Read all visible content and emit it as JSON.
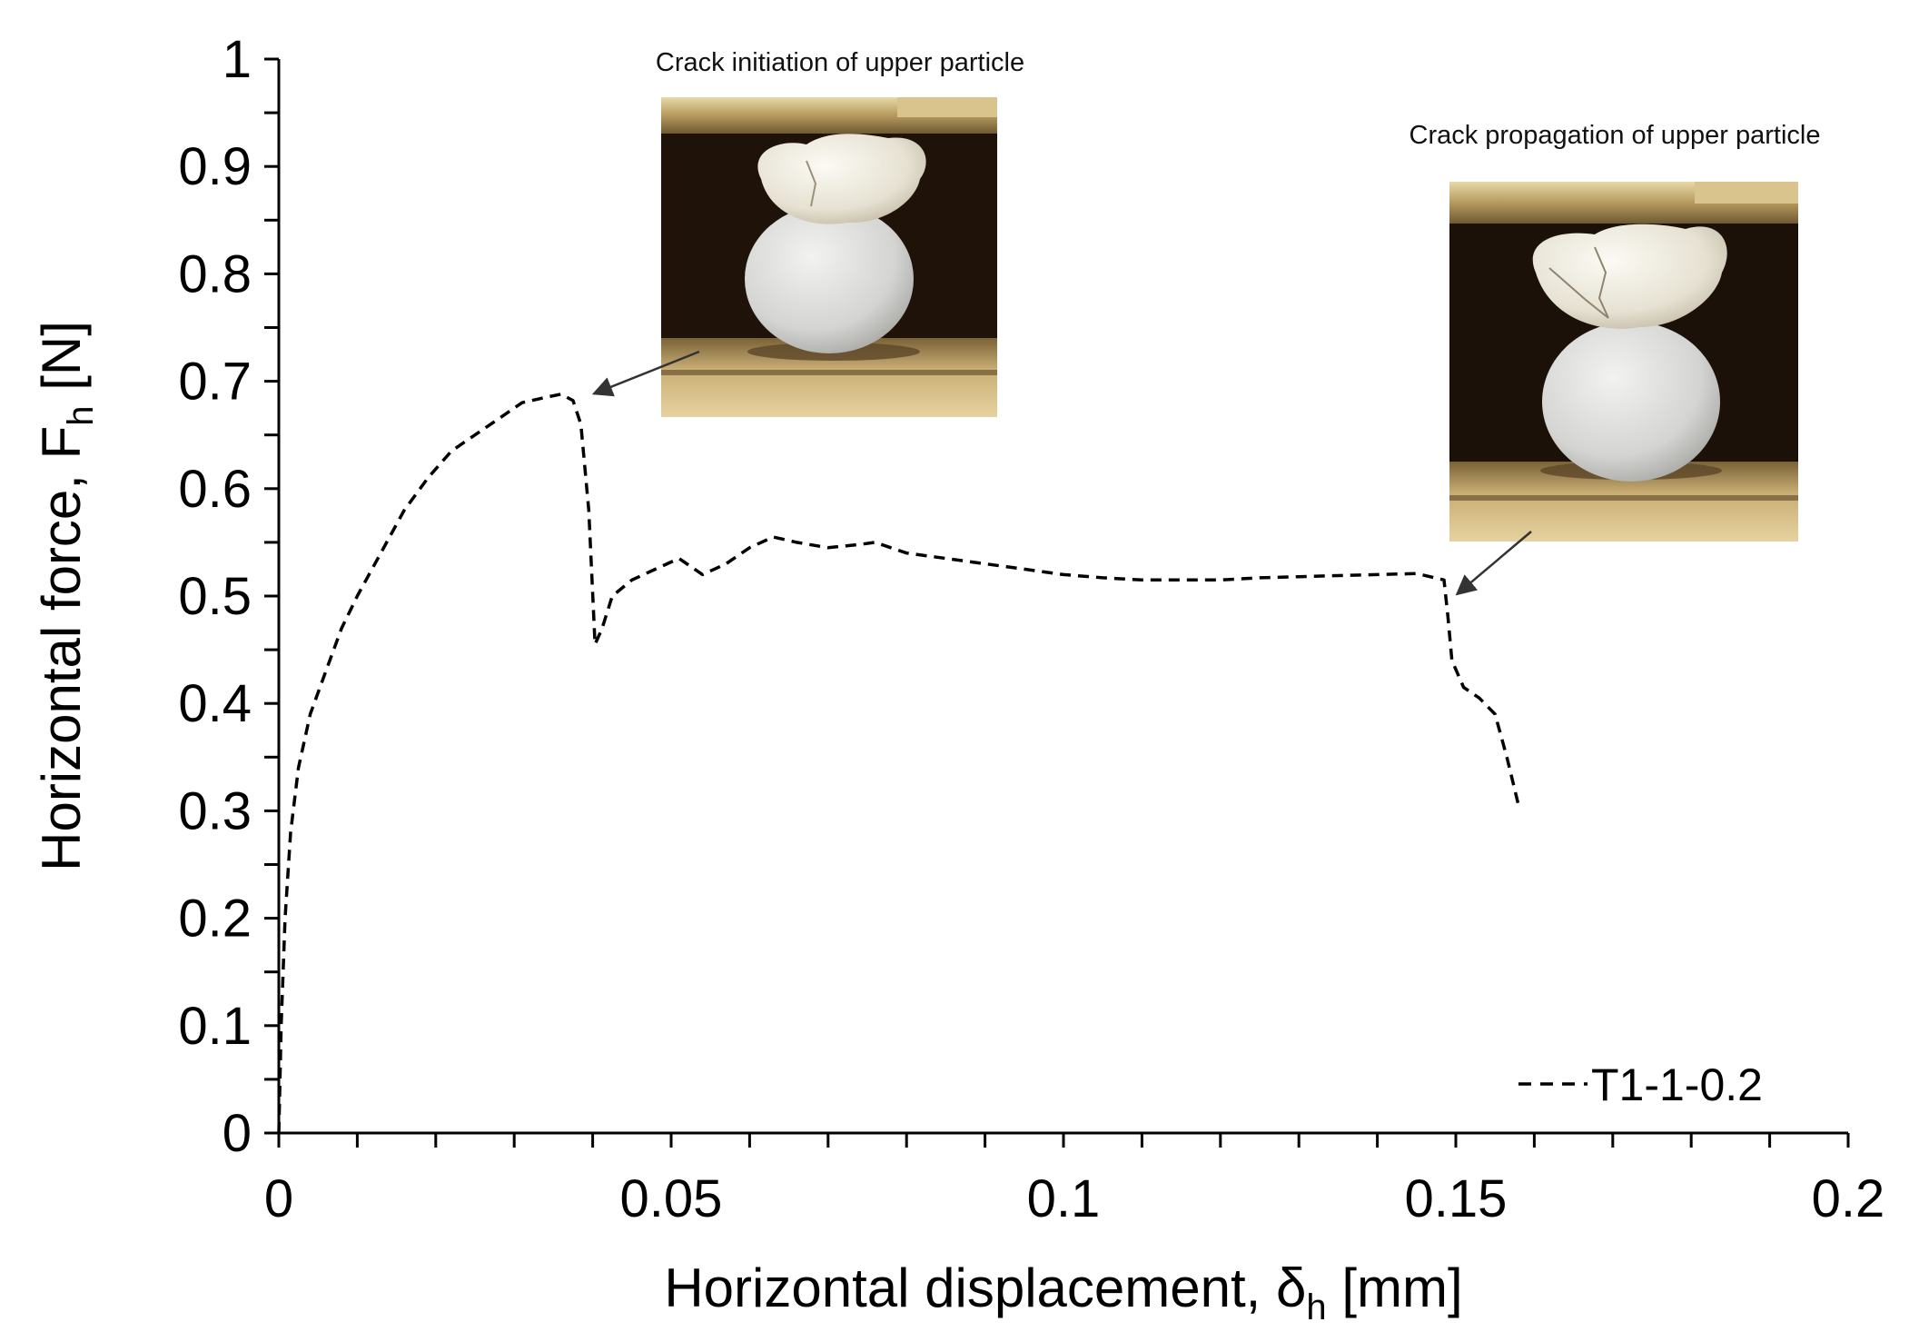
{
  "chart_data": {
    "type": "line",
    "xlabel_main": "Horizontal displacement, δ",
    "xlabel_sub": "h",
    "xlabel_unit": " [mm]",
    "ylabel_main": "Horizontal force, F",
    "ylabel_sub": "h",
    "ylabel_unit": " [N]",
    "xlim": [
      0,
      0.2
    ],
    "ylim": [
      0,
      1
    ],
    "x_ticks": [
      0,
      0.05,
      0.1,
      0.15,
      0.2
    ],
    "x_tick_labels": [
      "0",
      "0.05",
      "0.1",
      "0.15",
      "0.2"
    ],
    "y_ticks": [
      0,
      0.1,
      0.2,
      0.3,
      0.4,
      0.5,
      0.6,
      0.7,
      0.8,
      0.9,
      1
    ],
    "y_tick_labels": [
      "0",
      "0.1",
      "0.2",
      "0.3",
      "0.4",
      "0.5",
      "0.6",
      "0.7",
      "0.8",
      "0.9",
      "1"
    ],
    "grid": false,
    "legend_position": "bottom-right",
    "series": [
      {
        "name": "T1-1-0.2",
        "style": "dashed",
        "color": "#000000",
        "points": [
          [
            0.0,
            0.0
          ],
          [
            0.0003,
            0.1
          ],
          [
            0.0008,
            0.2
          ],
          [
            0.0015,
            0.28
          ],
          [
            0.0025,
            0.34
          ],
          [
            0.004,
            0.39
          ],
          [
            0.006,
            0.43
          ],
          [
            0.008,
            0.47
          ],
          [
            0.01,
            0.5
          ],
          [
            0.013,
            0.54
          ],
          [
            0.016,
            0.58
          ],
          [
            0.019,
            0.61
          ],
          [
            0.022,
            0.635
          ],
          [
            0.025,
            0.65
          ],
          [
            0.028,
            0.665
          ],
          [
            0.031,
            0.68
          ],
          [
            0.034,
            0.685
          ],
          [
            0.036,
            0.688
          ],
          [
            0.0375,
            0.682
          ],
          [
            0.0385,
            0.66
          ],
          [
            0.0395,
            0.58
          ],
          [
            0.0403,
            0.455
          ],
          [
            0.0412,
            0.47
          ],
          [
            0.0425,
            0.5
          ],
          [
            0.045,
            0.515
          ],
          [
            0.048,
            0.525
          ],
          [
            0.051,
            0.535
          ],
          [
            0.054,
            0.52
          ],
          [
            0.057,
            0.53
          ],
          [
            0.06,
            0.545
          ],
          [
            0.063,
            0.555
          ],
          [
            0.066,
            0.55
          ],
          [
            0.07,
            0.545
          ],
          [
            0.074,
            0.548
          ],
          [
            0.076,
            0.55
          ],
          [
            0.08,
            0.54
          ],
          [
            0.085,
            0.535
          ],
          [
            0.09,
            0.53
          ],
          [
            0.095,
            0.525
          ],
          [
            0.1,
            0.52
          ],
          [
            0.105,
            0.517
          ],
          [
            0.11,
            0.515
          ],
          [
            0.115,
            0.515
          ],
          [
            0.12,
            0.515
          ],
          [
            0.125,
            0.517
          ],
          [
            0.13,
            0.518
          ],
          [
            0.135,
            0.519
          ],
          [
            0.14,
            0.52
          ],
          [
            0.145,
            0.521
          ],
          [
            0.1485,
            0.515
          ],
          [
            0.149,
            0.48
          ],
          [
            0.1495,
            0.44
          ],
          [
            0.151,
            0.415
          ],
          [
            0.153,
            0.405
          ],
          [
            0.155,
            0.39
          ],
          [
            0.1565,
            0.35
          ],
          [
            0.158,
            0.305
          ]
        ]
      }
    ],
    "annotations": [
      {
        "text": "Crack initiation  of upper particle",
        "x": 0.039,
        "y": 0.685
      },
      {
        "text": "Crack propagation  of upper particle",
        "x": 0.149,
        "y": 0.495
      }
    ]
  }
}
